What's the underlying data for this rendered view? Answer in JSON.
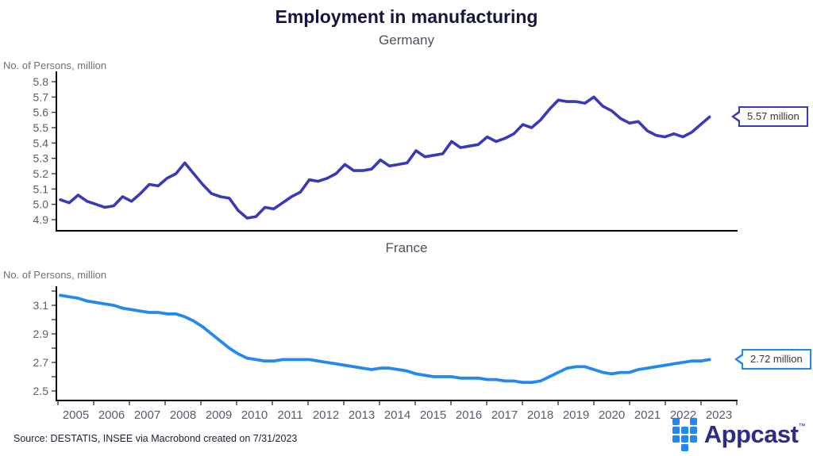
{
  "title": "Employment in manufacturing",
  "source_note": "Source: DESTATIS, INSEE via Macrobond created on 7/31/2023",
  "brand": {
    "name": "Appcast",
    "tm": "™",
    "mark_color": "#1e88f7",
    "word_color": "#2d2d85",
    "grid": [
      [
        1,
        0,
        1
      ],
      [
        1,
        1,
        1
      ],
      [
        1,
        1,
        1
      ],
      [
        0,
        1,
        0
      ]
    ]
  },
  "chart_data": [
    {
      "type": "line",
      "title": "Germany",
      "ylabel": "No. of Persons, million",
      "color": "#3a3ab8",
      "end_label": "5.57 million",
      "x_start": 2005,
      "x_step_years": 0.25,
      "ylim": [
        4.82,
        5.88
      ],
      "yticks": [
        5.8,
        5.7,
        5.6,
        5.5,
        5.4,
        5.3,
        5.2,
        5.1,
        5.0,
        4.9
      ],
      "ytick_labels": [
        "5.8",
        "5.7",
        "5.6",
        "5.5",
        "5.4",
        "5.3",
        "5.2",
        "5.1",
        "5.0",
        "4.9"
      ],
      "grid": "off",
      "values": [
        5.03,
        5.01,
        5.06,
        5.02,
        5.0,
        4.98,
        4.99,
        5.05,
        5.02,
        5.07,
        5.13,
        5.12,
        5.17,
        5.2,
        5.27,
        5.2,
        5.13,
        5.07,
        5.05,
        5.04,
        4.96,
        4.91,
        4.92,
        4.98,
        4.97,
        5.01,
        5.05,
        5.08,
        5.16,
        5.15,
        5.17,
        5.2,
        5.26,
        5.22,
        5.22,
        5.23,
        5.29,
        5.25,
        5.26,
        5.27,
        5.35,
        5.31,
        5.32,
        5.33,
        5.41,
        5.37,
        5.38,
        5.39,
        5.44,
        5.41,
        5.43,
        5.46,
        5.52,
        5.5,
        5.55,
        5.62,
        5.68,
        5.67,
        5.67,
        5.66,
        5.7,
        5.64,
        5.61,
        5.56,
        5.53,
        5.54,
        5.48,
        5.45,
        5.44,
        5.46,
        5.44,
        5.47,
        5.52,
        5.57
      ]
    },
    {
      "type": "line",
      "title": "France",
      "ylabel": "No. of Persons, million",
      "color": "#2389f0",
      "end_label": "2.72 million",
      "x_start": 2005,
      "x_step_years": 0.25,
      "ylim": [
        2.43,
        3.25
      ],
      "yticks": [
        3.2,
        3.1,
        3.0,
        2.9,
        2.8,
        2.7,
        2.6,
        2.5
      ],
      "ytick_labels": [
        "",
        "3.1",
        "",
        "2.9",
        "",
        "2.7",
        "",
        "2.5"
      ],
      "xtick_labels": [
        "2005",
        "2006",
        "2007",
        "2008",
        "2009",
        "2010",
        "2011",
        "2012",
        "2013",
        "2014",
        "2015",
        "2016",
        "2017",
        "2018",
        "2019",
        "2020",
        "2021",
        "2022",
        "2023"
      ],
      "grid": "off",
      "values": [
        3.17,
        3.16,
        3.15,
        3.13,
        3.12,
        3.11,
        3.1,
        3.08,
        3.07,
        3.06,
        3.05,
        3.05,
        3.04,
        3.04,
        3.02,
        2.99,
        2.95,
        2.9,
        2.85,
        2.8,
        2.76,
        2.73,
        2.72,
        2.71,
        2.71,
        2.72,
        2.72,
        2.72,
        2.72,
        2.71,
        2.7,
        2.69,
        2.68,
        2.67,
        2.66,
        2.65,
        2.66,
        2.66,
        2.65,
        2.64,
        2.62,
        2.61,
        2.6,
        2.6,
        2.6,
        2.59,
        2.59,
        2.59,
        2.58,
        2.58,
        2.57,
        2.57,
        2.56,
        2.56,
        2.57,
        2.6,
        2.63,
        2.66,
        2.67,
        2.67,
        2.65,
        2.63,
        2.62,
        2.63,
        2.63,
        2.65,
        2.66,
        2.67,
        2.68,
        2.69,
        2.7,
        2.71,
        2.71,
        2.72
      ]
    }
  ]
}
